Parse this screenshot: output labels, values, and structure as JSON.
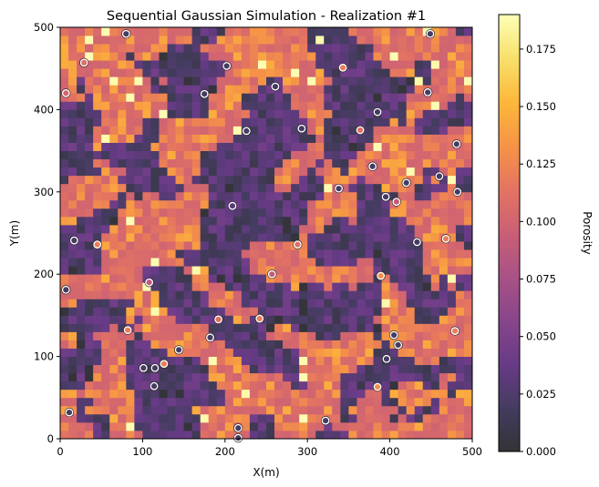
{
  "chart_data": {
    "type": "heatmap",
    "title": "Sequential Gaussian Simulation - Realization #1",
    "xlabel": "X(m)",
    "ylabel": "Y(m)",
    "xlim": [
      0,
      500
    ],
    "ylim": [
      0,
      500
    ],
    "xticks": [
      "0",
      "100",
      "200",
      "300",
      "400",
      "500"
    ],
    "yticks": [
      "0",
      "100",
      "200",
      "300",
      "400",
      "500"
    ],
    "grid": {
      "nx": 50,
      "ny": 50,
      "cell_size_m": 10,
      "typical_low": 0.03,
      "typical_high": 0.125
    },
    "colormap": "inferno",
    "colorbar": {
      "label": "Porosity",
      "range": [
        0,
        0.19
      ],
      "ticks": [
        "0.000",
        "0.025",
        "0.050",
        "0.075",
        "0.100",
        "0.125",
        "0.150",
        "0.175"
      ]
    },
    "wells": [
      {
        "x": 80,
        "y": 492,
        "v": 0.02
      },
      {
        "x": 29,
        "y": 457,
        "v": 0.11
      },
      {
        "x": 7,
        "y": 420,
        "v": 0.1
      },
      {
        "x": 202,
        "y": 453,
        "v": 0.02
      },
      {
        "x": 261,
        "y": 428,
        "v": 0.02
      },
      {
        "x": 343,
        "y": 451,
        "v": 0.12
      },
      {
        "x": 449,
        "y": 492,
        "v": 0.02
      },
      {
        "x": 175,
        "y": 419,
        "v": 0.02
      },
      {
        "x": 385,
        "y": 397,
        "v": 0.02
      },
      {
        "x": 446,
        "y": 421,
        "v": 0.02
      },
      {
        "x": 226,
        "y": 374,
        "v": 0.02
      },
      {
        "x": 293,
        "y": 377,
        "v": 0.02
      },
      {
        "x": 364,
        "y": 375,
        "v": 0.11
      },
      {
        "x": 379,
        "y": 331,
        "v": 0.02
      },
      {
        "x": 481,
        "y": 358,
        "v": 0.02
      },
      {
        "x": 338,
        "y": 304,
        "v": 0.02
      },
      {
        "x": 420,
        "y": 311,
        "v": 0.02
      },
      {
        "x": 460,
        "y": 319,
        "v": 0.02
      },
      {
        "x": 395,
        "y": 294,
        "v": 0.02
      },
      {
        "x": 408,
        "y": 288,
        "v": 0.09
      },
      {
        "x": 482,
        "y": 300,
        "v": 0.02
      },
      {
        "x": 209,
        "y": 283,
        "v": 0.03
      },
      {
        "x": 17,
        "y": 241,
        "v": 0.02
      },
      {
        "x": 45,
        "y": 236,
        "v": 0.12
      },
      {
        "x": 288,
        "y": 236,
        "v": 0.11
      },
      {
        "x": 433,
        "y": 239,
        "v": 0.02
      },
      {
        "x": 468,
        "y": 243,
        "v": 0.12
      },
      {
        "x": 7,
        "y": 181,
        "v": 0.02
      },
      {
        "x": 108,
        "y": 190,
        "v": 0.09
      },
      {
        "x": 257,
        "y": 200,
        "v": 0.09
      },
      {
        "x": 389,
        "y": 198,
        "v": 0.13
      },
      {
        "x": 82,
        "y": 132,
        "v": 0.12
      },
      {
        "x": 192,
        "y": 145,
        "v": 0.11
      },
      {
        "x": 242,
        "y": 146,
        "v": 0.12
      },
      {
        "x": 479,
        "y": 131,
        "v": 0.12
      },
      {
        "x": 182,
        "y": 123,
        "v": 0.02
      },
      {
        "x": 405,
        "y": 126,
        "v": 0.02
      },
      {
        "x": 410,
        "y": 114,
        "v": 0.02
      },
      {
        "x": 144,
        "y": 108,
        "v": 0.02
      },
      {
        "x": 126,
        "y": 91,
        "v": 0.12
      },
      {
        "x": 101,
        "y": 86,
        "v": 0.02
      },
      {
        "x": 115,
        "y": 86,
        "v": 0.02
      },
      {
        "x": 396,
        "y": 97,
        "v": 0.02
      },
      {
        "x": 114,
        "y": 64,
        "v": 0.02
      },
      {
        "x": 385,
        "y": 63,
        "v": 0.13
      },
      {
        "x": 11,
        "y": 32,
        "v": 0.02
      },
      {
        "x": 216,
        "y": 13,
        "v": 0.02
      },
      {
        "x": 216,
        "y": 1,
        "v": 0.02
      },
      {
        "x": 322,
        "y": 22,
        "v": 0.02
      }
    ]
  }
}
